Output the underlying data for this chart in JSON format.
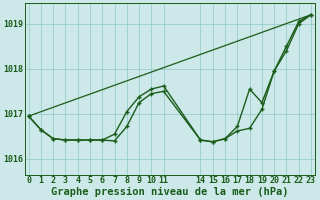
{
  "bg_color": "#cce8e8",
  "grid_color": "#99cccc",
  "line_color": "#1a5c1a",
  "marker_color": "#1a5c1a",
  "title": "Graphe pression niveau de la mer (hPa)",
  "ylabel_values": [
    1016,
    1017,
    1018,
    1019
  ],
  "xlim": [
    -0.3,
    23.3
  ],
  "ylim": [
    1015.65,
    1019.45
  ],
  "xtick_positions": [
    0,
    1,
    2,
    3,
    4,
    5,
    6,
    7,
    8,
    9,
    10,
    11,
    14,
    15,
    16,
    17,
    18,
    19,
    20,
    21,
    22,
    23
  ],
  "xtick_labels": [
    "0",
    "1",
    "2",
    "3",
    "4",
    "5",
    "6",
    "7",
    "8",
    "9",
    "10",
    "11",
    "14",
    "15",
    "16",
    "17",
    "18",
    "19",
    "20",
    "21",
    "22",
    "23"
  ],
  "series": [
    {
      "x": [
        0,
        23
      ],
      "y": [
        1016.95,
        1019.2
      ],
      "has_markers": false,
      "linewidth": 0.9
    },
    {
      "x": [
        0,
        1,
        2,
        3,
        4,
        5,
        6,
        7,
        8,
        9,
        10,
        11,
        14,
        15,
        16,
        17,
        18,
        19,
        20,
        21,
        22,
        23
      ],
      "y": [
        1016.95,
        1016.65,
        1016.45,
        1016.42,
        1016.42,
        1016.42,
        1016.42,
        1016.4,
        1016.72,
        1017.25,
        1017.45,
        1017.5,
        1016.42,
        1016.38,
        1016.45,
        1016.62,
        1016.68,
        1017.1,
        1017.95,
        1018.5,
        1019.05,
        1019.2
      ],
      "has_markers": true,
      "linewidth": 1.0
    },
    {
      "x": [
        0,
        1,
        2,
        3,
        4,
        5,
        6,
        7,
        8,
        9,
        10,
        11,
        14,
        15,
        16,
        17,
        18,
        19,
        20,
        21,
        22,
        23
      ],
      "y": [
        1016.95,
        1016.65,
        1016.45,
        1016.42,
        1016.42,
        1016.42,
        1016.42,
        1016.55,
        1017.05,
        1017.38,
        1017.55,
        1017.62,
        1016.42,
        1016.38,
        1016.45,
        1016.72,
        1017.55,
        1017.25,
        1017.95,
        1018.4,
        1019.0,
        1019.2
      ],
      "has_markers": true,
      "linewidth": 1.0
    }
  ],
  "font_color": "#1a5c1a",
  "title_fontsize": 7.5,
  "tick_fontsize": 6.0
}
